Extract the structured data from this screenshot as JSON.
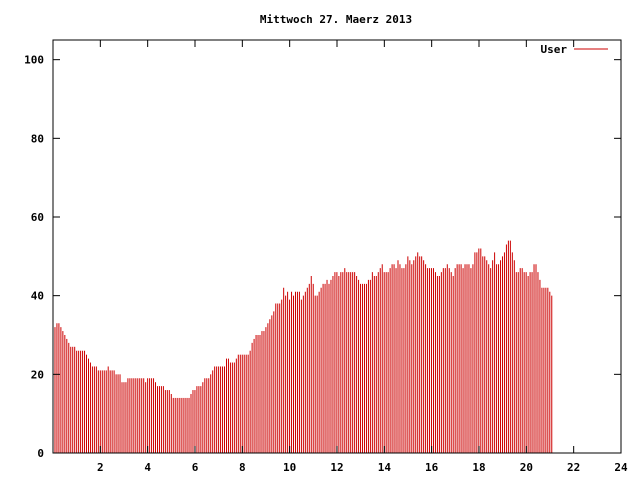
{
  "chart_data": {
    "type": "bar",
    "title": "Mittwoch 27. Maerz 2013",
    "xlabel": "",
    "ylabel": "",
    "xlim": [
      0,
      24
    ],
    "ylim": [
      0,
      105
    ],
    "xticks": [
      2,
      4,
      6,
      8,
      10,
      12,
      14,
      16,
      18,
      20,
      22,
      24
    ],
    "yticks": [
      0,
      20,
      40,
      60,
      80,
      100
    ],
    "grid": false,
    "legend_position": "top-right",
    "series": [
      {
        "name": "User",
        "color": "#cc0000",
        "x_start": 0.0833,
        "x_step": 0.0833,
        "values": [
          32,
          33,
          33,
          32,
          31,
          30,
          29,
          28,
          27,
          27,
          27,
          26,
          26,
          26,
          26,
          26,
          25,
          24,
          23,
          22,
          22,
          22,
          21,
          21,
          21,
          21,
          21,
          22,
          21,
          21,
          21,
          20,
          20,
          20,
          18,
          18,
          18,
          19,
          19,
          19,
          19,
          19,
          19,
          19,
          19,
          19,
          18,
          19,
          19,
          19,
          19,
          18,
          17,
          17,
          17,
          17,
          16,
          16,
          16,
          15,
          14,
          14,
          14,
          14,
          14,
          14,
          14,
          14,
          14,
          15,
          16,
          16,
          17,
          17,
          17,
          18,
          19,
          19,
          19,
          20,
          21,
          22,
          22,
          22,
          22,
          22,
          22,
          24,
          24,
          23,
          23,
          23,
          24,
          25,
          25,
          25,
          25,
          25,
          25,
          26,
          28,
          29,
          30,
          30,
          30,
          31,
          31,
          32,
          33,
          34,
          35,
          36,
          38,
          38,
          38,
          39,
          42,
          40,
          41,
          39,
          41,
          40,
          41,
          41,
          41,
          39,
          40,
          41,
          42,
          43,
          45,
          43,
          40,
          40,
          41,
          42,
          43,
          43,
          44,
          43,
          44,
          45,
          46,
          46,
          45,
          46,
          46,
          47,
          46,
          46,
          46,
          46,
          46,
          45,
          44,
          43,
          43,
          43,
          43,
          44,
          44,
          46,
          45,
          45,
          46,
          47,
          48,
          46,
          46,
          46,
          47,
          48,
          48,
          47,
          49,
          48,
          47,
          47,
          48,
          50,
          49,
          48,
          49,
          50,
          51,
          50,
          50,
          49,
          48,
          47,
          47,
          47,
          47,
          46,
          45,
          45,
          46,
          47,
          47,
          48,
          47,
          46,
          45,
          47,
          48,
          48,
          48,
          47,
          48,
          48,
          48,
          47,
          48,
          51,
          51,
          52,
          52,
          50,
          50,
          49,
          48,
          47,
          49,
          51,
          48,
          48,
          49,
          50,
          51,
          53,
          54,
          54,
          51,
          49,
          46,
          46,
          47,
          47,
          46,
          46,
          45,
          46,
          46,
          48,
          48,
          46,
          44,
          42,
          42,
          42,
          42,
          41,
          40
        ]
      }
    ]
  }
}
